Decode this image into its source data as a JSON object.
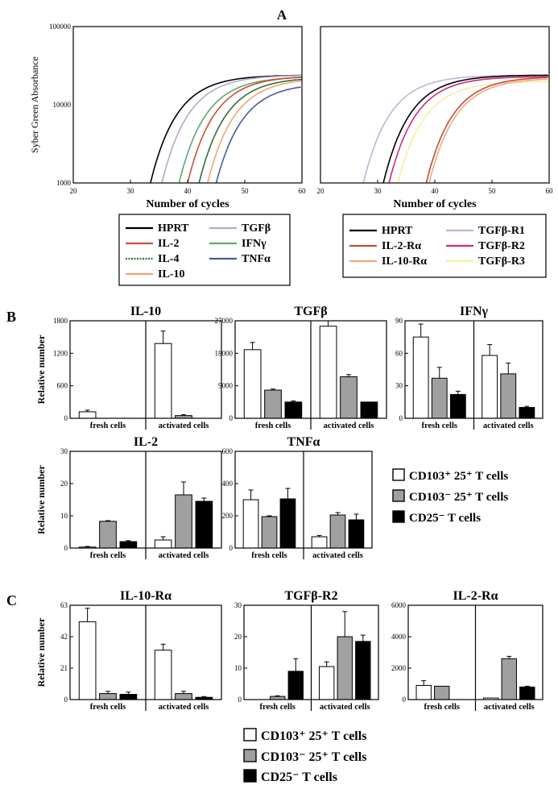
{
  "panels": {
    "a": "A",
    "b": "B",
    "c": "C"
  },
  "colors": {
    "hprt": "#000000",
    "il2": "#c9503a",
    "il4": "#2f6e3c",
    "il10": "#f2a377",
    "tgfb": "#b9a6cc",
    "ifng": "#5fa67a",
    "tnfa": "#4a5a9e",
    "il2r": "#b8503a",
    "il10r": "#f0a880",
    "tgfbr1": "#c7b0d6",
    "tgfbr2": "#cc2c7a",
    "tgfbr3": "#f7efa0",
    "white_fill": "#ffffff",
    "gray_fill": "#a0a0a0",
    "black_fill": "#000000"
  },
  "bar_legend": {
    "cd103p": "CD103⁺ 25⁺ T cells",
    "cd103m": "CD103⁻ 25⁺ T cells",
    "cd25m": "CD25⁻ T cells"
  },
  "group_labels": [
    "fresh cells",
    "activated cells"
  ],
  "chart_data": [
    {
      "id": "A-left",
      "type": "line",
      "ylabel": "Syber Green Absorbance",
      "xlabel": "Number of cycles",
      "xlim": [
        20,
        60
      ],
      "ylim": [
        1000,
        100000
      ],
      "yscale": "log",
      "xticks": [
        "20",
        "30",
        "40",
        "50",
        "60"
      ],
      "yticks": [
        "1000",
        "10000",
        "100000"
      ],
      "legend": [
        {
          "name": "HPRT",
          "color_key": "hprt"
        },
        {
          "name": "TGFβ",
          "color_key": "tgfb"
        },
        {
          "name": "IL-2",
          "color_key": "il2"
        },
        {
          "name": "IFNγ",
          "color_key": "ifng"
        },
        {
          "name": "IL-4",
          "color_key": "il4"
        },
        {
          "name": "TNFα",
          "color_key": "tnfa"
        },
        {
          "name": "IL-10",
          "color_key": "il10"
        }
      ],
      "series": [
        {
          "name": "HPRT",
          "color_key": "hprt",
          "start": 33.5,
          "plateau": 24000
        },
        {
          "name": "TGFβ",
          "color_key": "tgfb",
          "start": 35.5,
          "plateau": 24000
        },
        {
          "name": "IFNγ",
          "color_key": "ifng",
          "start": 38.5,
          "plateau": 23000
        },
        {
          "name": "IL-2",
          "color_key": "il2",
          "start": 40.0,
          "plateau": 23500
        },
        {
          "name": "IL-4",
          "color_key": "il4",
          "start": 42.0,
          "plateau": 22500
        },
        {
          "name": "IL-10",
          "color_key": "il10",
          "start": 43.5,
          "plateau": 22000
        },
        {
          "name": "TNFα",
          "color_key": "tnfa",
          "start": 45.0,
          "plateau": 19000
        }
      ]
    },
    {
      "id": "A-right",
      "type": "line",
      "xlabel": "Number of cycles",
      "xlim": [
        20,
        60
      ],
      "ylim": [
        1000,
        100000
      ],
      "yscale": "log",
      "xticks": [
        "20",
        "30",
        "40",
        "50",
        "60"
      ],
      "legend": [
        {
          "name": "HPRT",
          "color_key": "hprt"
        },
        {
          "name": "TGFβ-R1",
          "color_key": "tgfbr1"
        },
        {
          "name": "IL-2-Rα",
          "color_key": "il2r"
        },
        {
          "name": "TGFβ-R2",
          "color_key": "tgfbr2"
        },
        {
          "name": "IL-10-Rα",
          "color_key": "il10r"
        },
        {
          "name": "TGFβ-R3",
          "color_key": "tgfbr3"
        }
      ],
      "series": [
        {
          "name": "TGFβ-R1",
          "color_key": "tgfbr1",
          "start": 27.5,
          "plateau": 24000
        },
        {
          "name": "HPRT",
          "color_key": "hprt",
          "start": 31.0,
          "plateau": 24000
        },
        {
          "name": "TGFβ-R2",
          "color_key": "tgfbr2",
          "start": 32.0,
          "plateau": 23000
        },
        {
          "name": "TGFβ-R3",
          "color_key": "tgfbr3",
          "start": 33.5,
          "plateau": 20000
        },
        {
          "name": "IL-2-Rα",
          "color_key": "il2r",
          "start": 38.5,
          "plateau": 23000
        },
        {
          "name": "IL-10-Rα",
          "color_key": "il10r",
          "start": 39.0,
          "plateau": 22000
        }
      ]
    },
    {
      "id": "B-IL-10",
      "type": "bar",
      "title": "IL-10",
      "ylabel": "Relative number",
      "ylim": [
        0,
        1800
      ],
      "yticks": [
        "0",
        "600",
        "1200",
        "1800"
      ],
      "categories": [
        "fresh cells",
        "activated cells"
      ],
      "series": [
        {
          "fill_key": "white_fill",
          "values": [
            120,
            1380
          ],
          "err": [
            30,
            230
          ]
        },
        {
          "fill_key": "gray_fill",
          "values": [
            0,
            50
          ],
          "err": [
            0,
            15
          ]
        },
        {
          "fill_key": "black_fill",
          "values": [
            0,
            0
          ],
          "err": [
            0,
            0
          ]
        }
      ]
    },
    {
      "id": "B-TGFb",
      "type": "bar",
      "title": "TGFβ",
      "ylim": [
        0,
        27000
      ],
      "yticks": [
        "0",
        "9000",
        "18000",
        "27000"
      ],
      "categories": [
        "fresh cells",
        "activated cells"
      ],
      "series": [
        {
          "fill_key": "white_fill",
          "values": [
            19000,
            25500
          ],
          "err": [
            2000,
            1500
          ]
        },
        {
          "fill_key": "gray_fill",
          "values": [
            7800,
            11500
          ],
          "err": [
            300,
            600
          ]
        },
        {
          "fill_key": "black_fill",
          "values": [
            4500,
            4500
          ],
          "err": [
            300,
            0
          ]
        }
      ]
    },
    {
      "id": "B-IFNg",
      "type": "bar",
      "title": "IFNγ",
      "ylim": [
        0,
        90
      ],
      "yticks": [
        "0",
        "30",
        "60",
        "90"
      ],
      "categories": [
        "fresh cells",
        "activated cells"
      ],
      "series": [
        {
          "fill_key": "white_fill",
          "values": [
            75,
            58
          ],
          "err": [
            12,
            10
          ]
        },
        {
          "fill_key": "gray_fill",
          "values": [
            37,
            41
          ],
          "err": [
            10,
            10
          ]
        },
        {
          "fill_key": "black_fill",
          "values": [
            22,
            10
          ],
          "err": [
            3,
            1
          ]
        }
      ]
    },
    {
      "id": "B-IL-2",
      "type": "bar",
      "title": "IL-2",
      "ylabel": "Relative number",
      "ylim": [
        0,
        30
      ],
      "yticks": [
        "0",
        "10",
        "20",
        "30"
      ],
      "categories": [
        "fresh cells",
        "activated cells"
      ],
      "series": [
        {
          "fill_key": "white_fill",
          "values": [
            0.3,
            2.5
          ],
          "err": [
            0.2,
            1.0
          ]
        },
        {
          "fill_key": "gray_fill",
          "values": [
            8.3,
            16.5
          ],
          "err": [
            0.2,
            4
          ]
        },
        {
          "fill_key": "black_fill",
          "values": [
            2,
            14.5
          ],
          "err": [
            0.3,
            1
          ]
        }
      ]
    },
    {
      "id": "B-TNFa",
      "type": "bar",
      "title": "TNFα",
      "ylim": [
        0,
        600
      ],
      "yticks": [
        "0",
        "200",
        "400",
        "600"
      ],
      "categories": [
        "fresh cells",
        "activated cells"
      ],
      "series": [
        {
          "fill_key": "white_fill",
          "values": [
            300,
            70
          ],
          "err": [
            60,
            8
          ]
        },
        {
          "fill_key": "gray_fill",
          "values": [
            195,
            205
          ],
          "err": [
            5,
            15
          ]
        },
        {
          "fill_key": "black_fill",
          "values": [
            305,
            175
          ],
          "err": [
            65,
            35
          ]
        }
      ]
    },
    {
      "id": "C-IL-10-Ra",
      "type": "bar",
      "title": "IL-10-Rα",
      "ylabel": "Relative number",
      "ylim": [
        0,
        63
      ],
      "yticks": [
        "0",
        "21",
        "42",
        "63"
      ],
      "categories": [
        "fresh cells",
        "activated cells"
      ],
      "series": [
        {
          "fill_key": "white_fill",
          "values": [
            52,
            33
          ],
          "err": [
            9,
            4
          ]
        },
        {
          "fill_key": "gray_fill",
          "values": [
            4,
            4
          ],
          "err": [
            1.5,
            1.5
          ]
        },
        {
          "fill_key": "black_fill",
          "values": [
            3.5,
            1.5
          ],
          "err": [
            1.5,
            0.5
          ]
        }
      ]
    },
    {
      "id": "C-TGFb-R2",
      "type": "bar",
      "title": "TGFβ-R2",
      "ylim": [
        0,
        30
      ],
      "yticks": [
        "0",
        "10",
        "20",
        "30"
      ],
      "categories": [
        "fresh cells",
        "activated cells"
      ],
      "series": [
        {
          "fill_key": "white_fill",
          "values": [
            0,
            10.5
          ],
          "err": [
            0,
            1.5
          ]
        },
        {
          "fill_key": "gray_fill",
          "values": [
            1,
            20
          ],
          "err": [
            0.2,
            8
          ]
        },
        {
          "fill_key": "black_fill",
          "values": [
            9,
            18.5
          ],
          "err": [
            4,
            2
          ]
        }
      ]
    },
    {
      "id": "C-IL-2-Ra",
      "type": "bar",
      "title": "IL-2-Rα",
      "ylim": [
        0,
        6000
      ],
      "yticks": [
        "0",
        "2000",
        "4000",
        "6000"
      ],
      "categories": [
        "fresh cells",
        "activated cells"
      ],
      "series": [
        {
          "fill_key": "white_fill",
          "values": [
            900,
            100
          ],
          "err": [
            300,
            0
          ]
        },
        {
          "fill_key": "gray_fill",
          "values": [
            850,
            2600
          ],
          "err": [
            0,
            150
          ]
        },
        {
          "fill_key": "black_fill",
          "values": [
            0,
            800
          ],
          "err": [
            0,
            50
          ]
        }
      ]
    }
  ]
}
